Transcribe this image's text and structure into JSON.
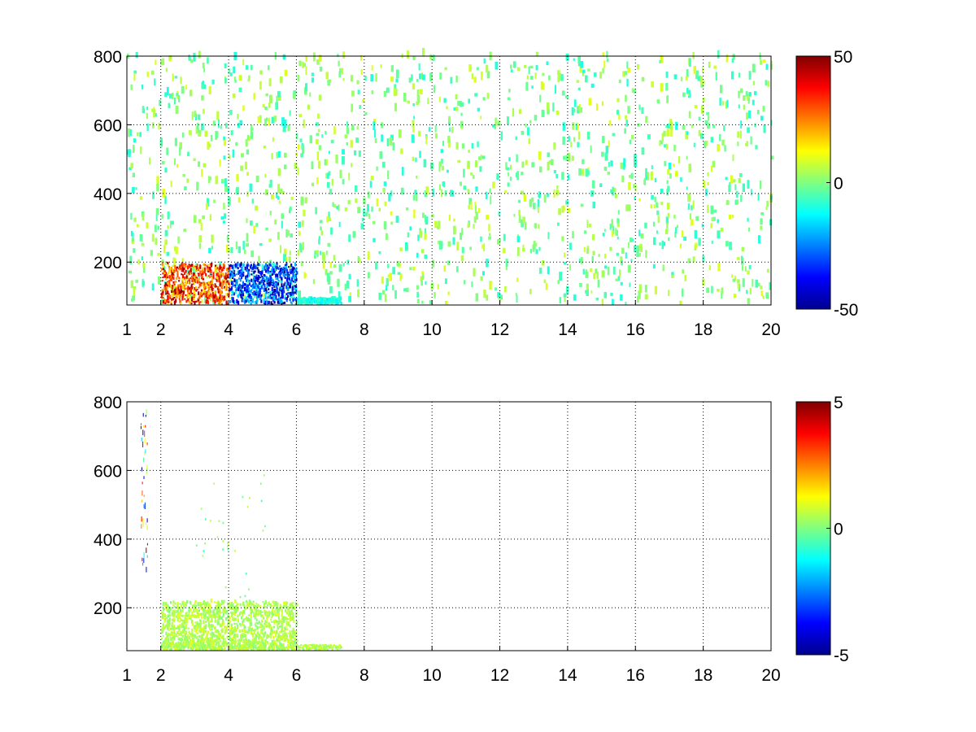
{
  "chart_data": [
    {
      "type": "heatmap",
      "title": "",
      "xlabel": "",
      "ylabel": "",
      "xlim": [
        1,
        20
      ],
      "ylim": [
        75,
        800
      ],
      "x_ticks": [
        1,
        2,
        4,
        6,
        8,
        10,
        12,
        14,
        16,
        18,
        20
      ],
      "y_ticks": [
        200,
        400,
        600,
        800
      ],
      "grid": true,
      "colormap": "jet",
      "colorbar": {
        "min": -50,
        "max": 50,
        "ticks": [
          50,
          0,
          -50
        ]
      },
      "regions": [
        {
          "x": [
            2.0,
            6.0
          ],
          "y": [
            75,
            190
          ],
          "value_range": [
            -50,
            50
          ],
          "description_value": "strong positive and negative values, mixed"
        },
        {
          "x": [
            2.0,
            4.0
          ],
          "y": [
            75,
            190
          ],
          "value_range": [
            15,
            50
          ],
          "description_value": "mostly positive"
        },
        {
          "x": [
            4.0,
            6.0
          ],
          "y": [
            75,
            190
          ],
          "value_range": [
            -50,
            -15
          ],
          "description_value": "mostly negative"
        },
        {
          "x": [
            6.0,
            7.3
          ],
          "y": [
            75,
            90
          ],
          "value_range": [
            -15,
            -5
          ],
          "description_value": "weak negative"
        },
        {
          "x": [
            1.0,
            20.0
          ],
          "y": [
            75,
            800
          ],
          "value_range": [
            -10,
            10
          ],
          "description_value": "sparse scattered small values"
        }
      ]
    },
    {
      "type": "heatmap",
      "title": "",
      "xlabel": "",
      "ylabel": "",
      "xlim": [
        1,
        20
      ],
      "ylim": [
        75,
        800
      ],
      "x_ticks": [
        1,
        2,
        4,
        6,
        8,
        10,
        12,
        14,
        16,
        18,
        20
      ],
      "y_ticks": [
        200,
        400,
        600,
        800
      ],
      "grid": true,
      "colormap": "jet",
      "colorbar": {
        "min": -5,
        "max": 5,
        "ticks": [
          5,
          0,
          -5
        ]
      },
      "regions": [
        {
          "x": [
            2.0,
            6.0
          ],
          "y": [
            75,
            215
          ],
          "value_range": [
            0,
            1
          ],
          "description_value": "near-zero values, dense"
        },
        {
          "x": [
            6.0,
            7.3
          ],
          "y": [
            75,
            90
          ],
          "value_range": [
            0,
            1
          ],
          "description_value": "near-zero values"
        },
        {
          "x": [
            1.4,
            1.6
          ],
          "y": [
            300,
            780
          ],
          "value_range": [
            -5,
            5
          ],
          "description_value": "thin streak of extreme values"
        }
      ]
    }
  ]
}
